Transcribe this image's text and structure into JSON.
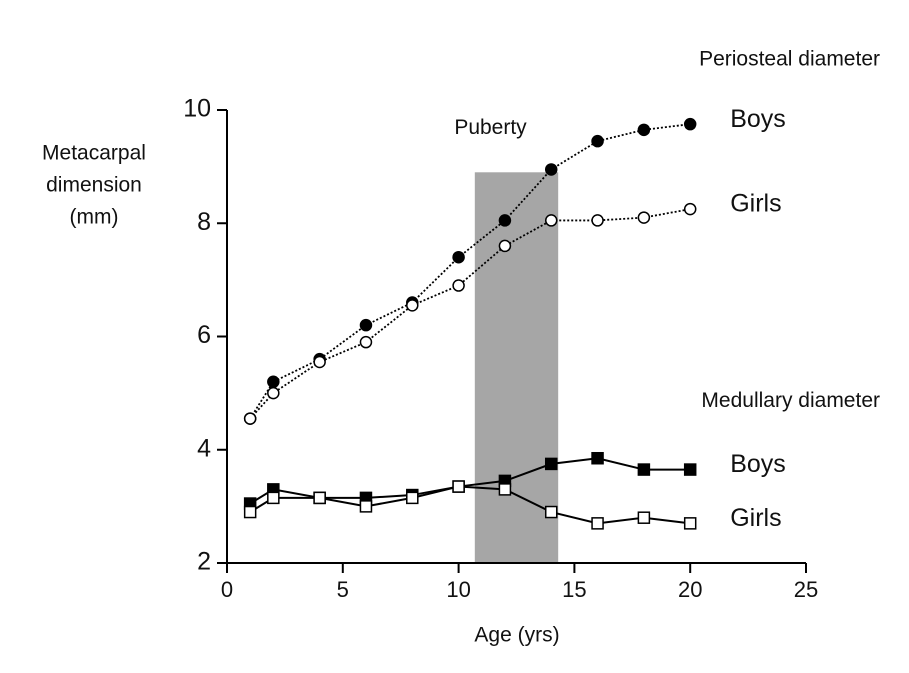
{
  "chart_data": {
    "type": "line",
    "ylabel": [
      "Metacarpal",
      "dimension",
      "(mm)"
    ],
    "xlabel": "Age (yrs)",
    "xlim": [
      0,
      25
    ],
    "xticks": [
      0,
      5,
      10,
      15,
      20,
      25
    ],
    "ylim": [
      2,
      10
    ],
    "yticks": [
      2,
      4,
      6,
      8,
      10
    ],
    "x": [
      1,
      2,
      4,
      6,
      8,
      10,
      12,
      14,
      16,
      18,
      20
    ],
    "groups": [
      "Periosteal diameter",
      "Medullary diameter"
    ],
    "shaded_region": {
      "label": "Puberty",
      "x": [
        10.7,
        14.3
      ],
      "top": 8.9,
      "color": "#a6a6a6"
    },
    "series": [
      {
        "name": "Boys",
        "group": 0,
        "marker": "circle",
        "filled": true,
        "dash": "dotted",
        "color": "#000000",
        "values": [
          4.55,
          5.2,
          5.6,
          6.2,
          6.6,
          7.4,
          8.05,
          8.95,
          9.45,
          9.65,
          9.75
        ]
      },
      {
        "name": "Girls",
        "group": 0,
        "marker": "circle",
        "filled": false,
        "dash": "dotted",
        "color": "#000000",
        "values": [
          4.55,
          5.0,
          5.55,
          5.9,
          6.55,
          6.9,
          7.6,
          8.05,
          8.05,
          8.1,
          8.25
        ]
      },
      {
        "name": "Boys",
        "group": 1,
        "marker": "square",
        "filled": true,
        "dash": "solid",
        "color": "#000000",
        "values": [
          3.05,
          3.3,
          3.15,
          3.15,
          3.2,
          3.35,
          3.45,
          3.75,
          3.85,
          3.65,
          3.65
        ]
      },
      {
        "name": "Girls",
        "group": 1,
        "marker": "square",
        "filled": false,
        "dash": "solid",
        "color": "#000000",
        "values": [
          2.9,
          3.15,
          3.15,
          3.0,
          3.15,
          3.35,
          3.3,
          2.9,
          2.7,
          2.8,
          2.7
        ]
      }
    ]
  }
}
